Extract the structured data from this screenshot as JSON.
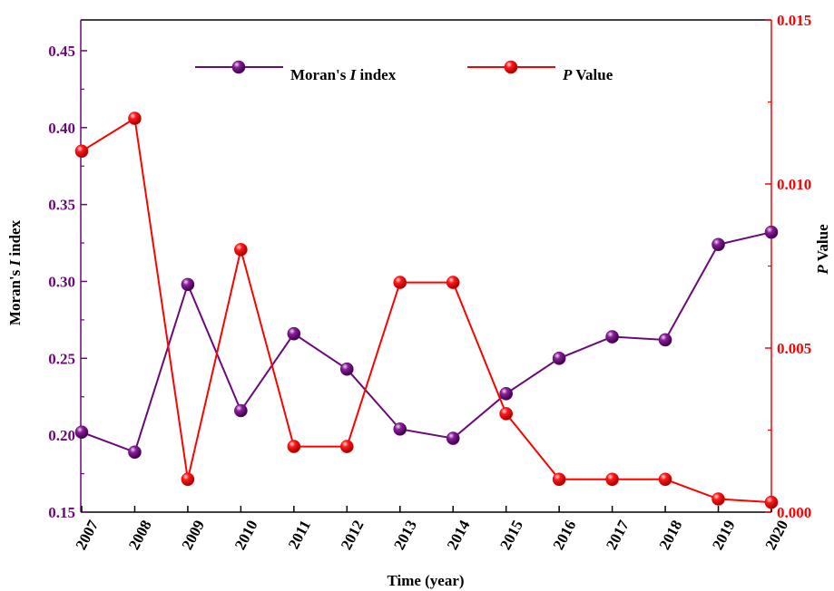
{
  "chart_data": {
    "type": "line",
    "xlabel": "Time (year)",
    "ylabel_left": {
      "prefix": "Moran's ",
      "italic": "I",
      "suffix": " index"
    },
    "ylabel_right": {
      "italic": "P",
      "suffix": " Value"
    },
    "ylim_left": [
      0.15,
      0.47
    ],
    "ylim_right": [
      0.0,
      0.015
    ],
    "left_ticks": [
      "0.15",
      "0.20",
      "0.25",
      "0.30",
      "0.35",
      "0.40",
      "0.45"
    ],
    "right_ticks": [
      "0.000",
      "0.005",
      "0.010",
      "0.015"
    ],
    "categories": [
      "2007",
      "2008",
      "2009",
      "2010",
      "2011",
      "2012",
      "2013",
      "2014",
      "2015",
      "2016",
      "2017",
      "2018",
      "2019",
      "2020"
    ],
    "series": [
      {
        "name_prefix": "Moran's ",
        "name_italic": "I",
        "name_suffix": " index",
        "axis": "left",
        "color": "#6a0a78",
        "values": [
          0.202,
          0.189,
          0.298,
          0.216,
          0.266,
          0.243,
          0.204,
          0.198,
          0.227,
          0.25,
          0.264,
          0.262,
          0.324,
          0.332
        ]
      },
      {
        "name_prefix": "",
        "name_italic": "P",
        "name_suffix": " Value",
        "axis": "right",
        "color": "#ff0000",
        "values": [
          0.011,
          0.012,
          0.001,
          0.008,
          0.002,
          0.002,
          0.007,
          0.007,
          0.003,
          0.001,
          0.001,
          0.001,
          0.0004,
          0.0003
        ]
      }
    ],
    "legend_position": "top",
    "grid": false,
    "left_axis_color": "#6a0a78",
    "right_axis_color": "#ff0000"
  }
}
